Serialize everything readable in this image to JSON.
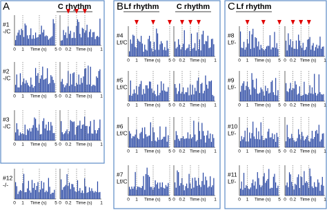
{
  "sections": [
    {
      "letter": "A",
      "headers": [
        "C rhythm"
      ],
      "rows": [
        {
          "id": "#1",
          "label": "-/C"
        },
        {
          "id": "#2",
          "label": "-/C"
        },
        {
          "id": "#3",
          "label": "-/C"
        },
        {
          "id": "#12",
          "label": "-/-"
        }
      ]
    },
    {
      "letter": "B",
      "headers": [
        "Lf rhythm",
        "C rhythm"
      ],
      "rows": [
        {
          "id": "#4",
          "label": "Lf/C"
        },
        {
          "id": "#5",
          "label": "Lf/C"
        },
        {
          "id": "#6",
          "label": "Lf/C"
        },
        {
          "id": "#7",
          "label": "Lf/C"
        }
      ]
    },
    {
      "letter": "C",
      "headers": [
        "Lf rhythm"
      ],
      "rows": [
        {
          "id": "#8",
          "label": "Lf/-"
        },
        {
          "id": "#9",
          "label": "Lf/-"
        },
        {
          "id": "#10",
          "label": "Lf/-"
        },
        {
          "id": "#11",
          "label": "Lf/-"
        }
      ]
    }
  ],
  "left_axis": {
    "ticks": [
      "0",
      "1",
      "5"
    ],
    "title": "Time (s)"
  },
  "right_axis": {
    "ticks": [
      "0",
      "0.2",
      "1"
    ],
    "title": "Time (s)"
  }
}
